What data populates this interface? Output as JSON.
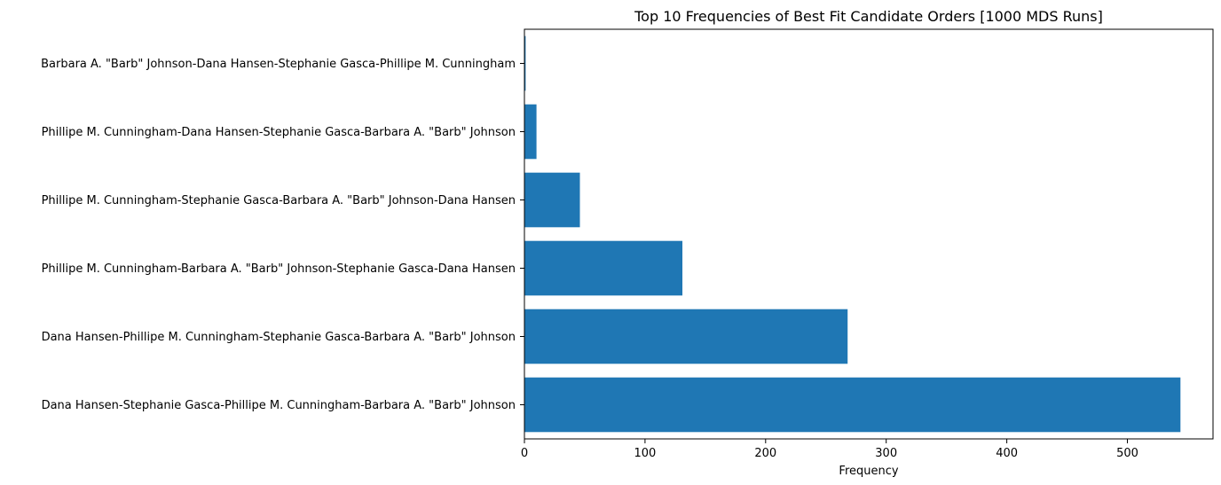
{
  "chart_data": {
    "type": "bar",
    "orientation": "horizontal",
    "title": "Top 10 Frequencies of Best Fit Candidate Orders [1000 MDS Runs]",
    "xlabel": "Frequency",
    "ylabel": "",
    "xlim": [
      0,
      571
    ],
    "xticks": [
      0,
      100,
      200,
      300,
      400,
      500
    ],
    "grid": false,
    "categories": [
      "Dana Hansen-Stephanie Gasca-Phillipe M. Cunningham-Barbara A. \"Barb\" Johnson",
      "Dana Hansen-Phillipe M. Cunningham-Stephanie Gasca-Barbara A. \"Barb\" Johnson",
      "Phillipe M. Cunningham-Barbara A. \"Barb\" Johnson-Stephanie Gasca-Dana Hansen",
      "Phillipe M. Cunningham-Stephanie Gasca-Barbara A. \"Barb\" Johnson-Dana Hansen",
      "Phillipe M. Cunningham-Dana Hansen-Stephanie Gasca-Barbara A. \"Barb\" Johnson",
      "Barbara A. \"Barb\" Johnson-Dana Hansen-Stephanie Gasca-Phillipe M. Cunningham"
    ],
    "values": [
      544,
      268,
      131,
      46,
      10,
      1
    ],
    "bar_color": "#1f77b4"
  }
}
